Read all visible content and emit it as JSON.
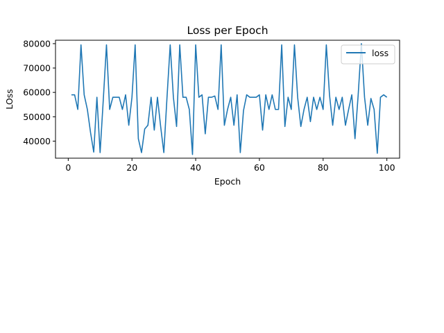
{
  "chart_data": {
    "type": "line",
    "title": "Loss per Epoch",
    "xlabel": "Epoch",
    "ylabel": "LOss",
    "xlim": [
      -4,
      104
    ],
    "ylim": [
      33000,
      81400
    ],
    "xticks": [
      0,
      20,
      40,
      60,
      80,
      100
    ],
    "yticks": [
      40000,
      50000,
      60000,
      70000,
      80000
    ],
    "grid": false,
    "legend_position": "top-right",
    "series": [
      {
        "name": "loss",
        "color": "#1f77b4",
        "x": [
          1,
          2,
          3,
          4,
          5,
          6,
          7,
          8,
          9,
          10,
          11,
          12,
          13,
          14,
          15,
          16,
          17,
          18,
          19,
          20,
          21,
          22,
          23,
          24,
          25,
          26,
          27,
          28,
          29,
          30,
          31,
          32,
          33,
          34,
          35,
          36,
          37,
          38,
          39,
          40,
          41,
          42,
          43,
          44,
          45,
          46,
          47,
          48,
          49,
          50,
          51,
          52,
          53,
          54,
          55,
          56,
          57,
          58,
          59,
          60,
          61,
          62,
          63,
          64,
          65,
          66,
          67,
          68,
          69,
          70,
          71,
          72,
          73,
          74,
          75,
          76,
          77,
          78,
          79,
          80,
          81,
          82,
          83,
          84,
          85,
          86,
          87,
          88,
          89,
          90,
          91,
          92,
          93,
          94,
          95,
          96,
          97,
          98,
          99,
          100
        ],
        "y": [
          59000,
          59000,
          53000,
          79500,
          59000,
          53000,
          43500,
          35500,
          58000,
          35300,
          57000,
          79500,
          53000,
          58000,
          58000,
          58000,
          53000,
          59000,
          46500,
          58000,
          79500,
          41000,
          35300,
          45000,
          46500,
          58000,
          44500,
          58000,
          46000,
          35300,
          58000,
          79500,
          58000,
          46000,
          79500,
          58000,
          58000,
          53000,
          34500,
          79500,
          58000,
          59000,
          43000,
          58000,
          58000,
          58500,
          53000,
          79500,
          46500,
          53000,
          58000,
          46500,
          59000,
          35300,
          52500,
          59000,
          58000,
          58000,
          58000,
          59000,
          44500,
          59000,
          53000,
          59000,
          53000,
          53000,
          79500,
          46000,
          58000,
          53000,
          79500,
          58000,
          46000,
          53000,
          58000,
          48000,
          58000,
          53000,
          58000,
          53000,
          79500,
          59000,
          46500,
          58000,
          53000,
          58000,
          46500,
          53000,
          59000,
          41000,
          59000,
          80000,
          58000,
          46500,
          57500,
          53000,
          35000,
          58000,
          59000,
          58000
        ]
      }
    ]
  }
}
